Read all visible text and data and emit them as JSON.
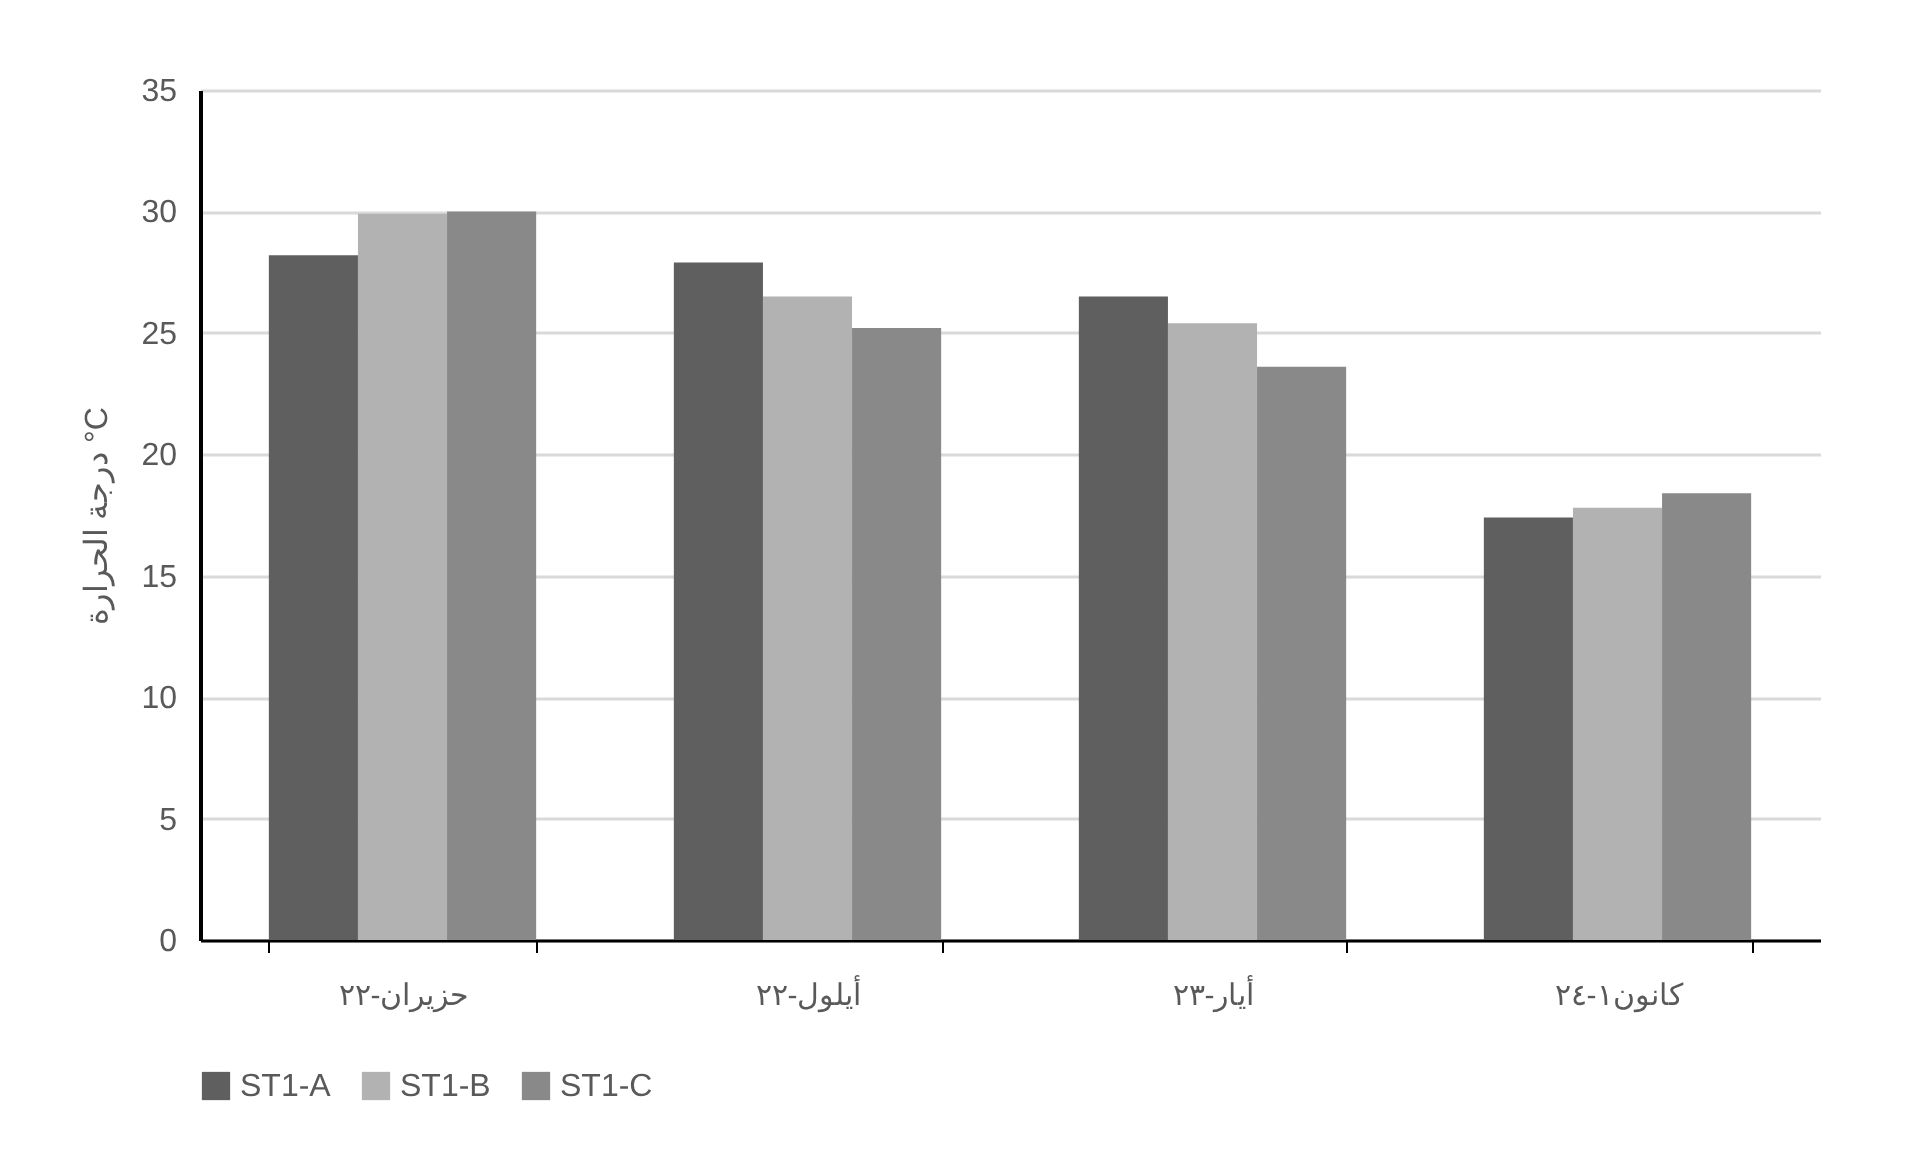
{
  "chart_data": {
    "type": "bar",
    "ylabel": "درجة الحرارة °C",
    "categories": [
      "حزيران-٢٢",
      "أيلول-٢٢",
      "أيار-٢٣",
      "كانون١-٢٤"
    ],
    "series": [
      {
        "name": "ST1-A",
        "color": "#5f5f5f",
        "values": [
          28.2,
          27.9,
          26.5,
          17.4
        ]
      },
      {
        "name": "ST1-B",
        "color": "#b2b2b2",
        "values": [
          29.9,
          26.5,
          25.4,
          17.8
        ]
      },
      {
        "name": "ST1-C",
        "color": "#898989",
        "values": [
          30.0,
          25.2,
          23.6,
          18.4
        ]
      }
    ],
    "ylim": [
      0,
      35
    ],
    "yticks": [
      0,
      5,
      10,
      15,
      20,
      25,
      30,
      35
    ],
    "grid": "y",
    "legend": "bottom"
  }
}
